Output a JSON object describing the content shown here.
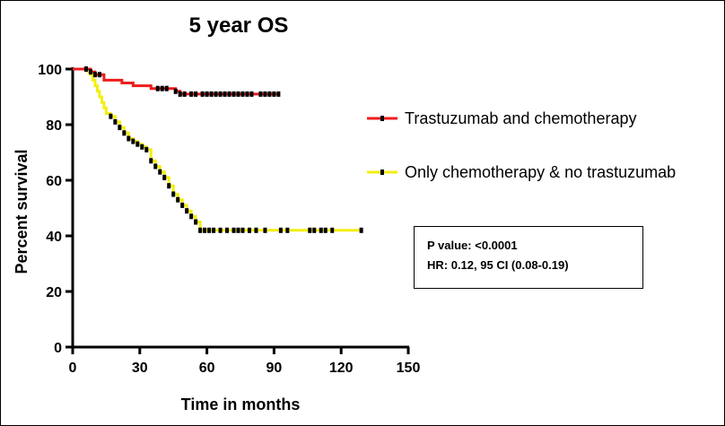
{
  "chart_data": {
    "type": "line",
    "title": "5 year OS",
    "xlabel": "Time in months",
    "ylabel": "Percent survival",
    "xlim": [
      0,
      150
    ],
    "ylim": [
      0,
      100
    ],
    "xticks": [
      0,
      30,
      60,
      90,
      120,
      150
    ],
    "yticks": [
      0,
      20,
      40,
      60,
      80,
      100
    ],
    "grid": false,
    "legend": "right",
    "series": [
      {
        "name": "Trastuzumab and chemotherapy",
        "color": "#ee1c1c",
        "step": true,
        "points": [
          [
            0,
            100
          ],
          [
            6,
            100
          ],
          [
            8,
            99
          ],
          [
            10,
            98
          ],
          [
            14,
            96
          ],
          [
            22,
            95
          ],
          [
            27,
            94
          ],
          [
            35,
            93
          ],
          [
            46,
            92
          ],
          [
            48,
            91
          ],
          [
            92,
            91
          ]
        ],
        "censored": [
          6,
          8,
          10,
          12,
          38,
          40,
          42,
          46,
          48,
          50,
          53,
          55,
          58,
          60,
          62,
          64,
          66,
          68,
          70,
          72,
          74,
          76,
          78,
          80,
          84,
          86,
          88,
          90,
          92
        ]
      },
      {
        "name": "Only chemotherapy & no trastuzumab",
        "color": "#f4ee10",
        "step": true,
        "points": [
          [
            0,
            100
          ],
          [
            6,
            100
          ],
          [
            7,
            99
          ],
          [
            8,
            98
          ],
          [
            9,
            96
          ],
          [
            10,
            94
          ],
          [
            11,
            92
          ],
          [
            12,
            90
          ],
          [
            13,
            88
          ],
          [
            14,
            86
          ],
          [
            15,
            84
          ],
          [
            17,
            83
          ],
          [
            19,
            81
          ],
          [
            21,
            79
          ],
          [
            23,
            77
          ],
          [
            25,
            75
          ],
          [
            27,
            74
          ],
          [
            29,
            73
          ],
          [
            31,
            72
          ],
          [
            33,
            71
          ],
          [
            35,
            67
          ],
          [
            37,
            65
          ],
          [
            39,
            63
          ],
          [
            41,
            61
          ],
          [
            43,
            58
          ],
          [
            45,
            55
          ],
          [
            47,
            53
          ],
          [
            49,
            51
          ],
          [
            51,
            49
          ],
          [
            53,
            47
          ],
          [
            55,
            45
          ],
          [
            57,
            42
          ],
          [
            96,
            42
          ],
          [
            129,
            42
          ]
        ],
        "censored": [
          17,
          19,
          21,
          23,
          25,
          27,
          29,
          31,
          33,
          35,
          37,
          39,
          41,
          43,
          45,
          47,
          49,
          51,
          53,
          55,
          57,
          59,
          61,
          63,
          66,
          69,
          72,
          74,
          76,
          79,
          82,
          86,
          93,
          96,
          106,
          108,
          111,
          113,
          116,
          129
        ]
      }
    ],
    "annotation": {
      "line1": "P value: <0.0001",
      "line2": "HR: 0.12, 95 CI (0.08-0.19)"
    }
  }
}
